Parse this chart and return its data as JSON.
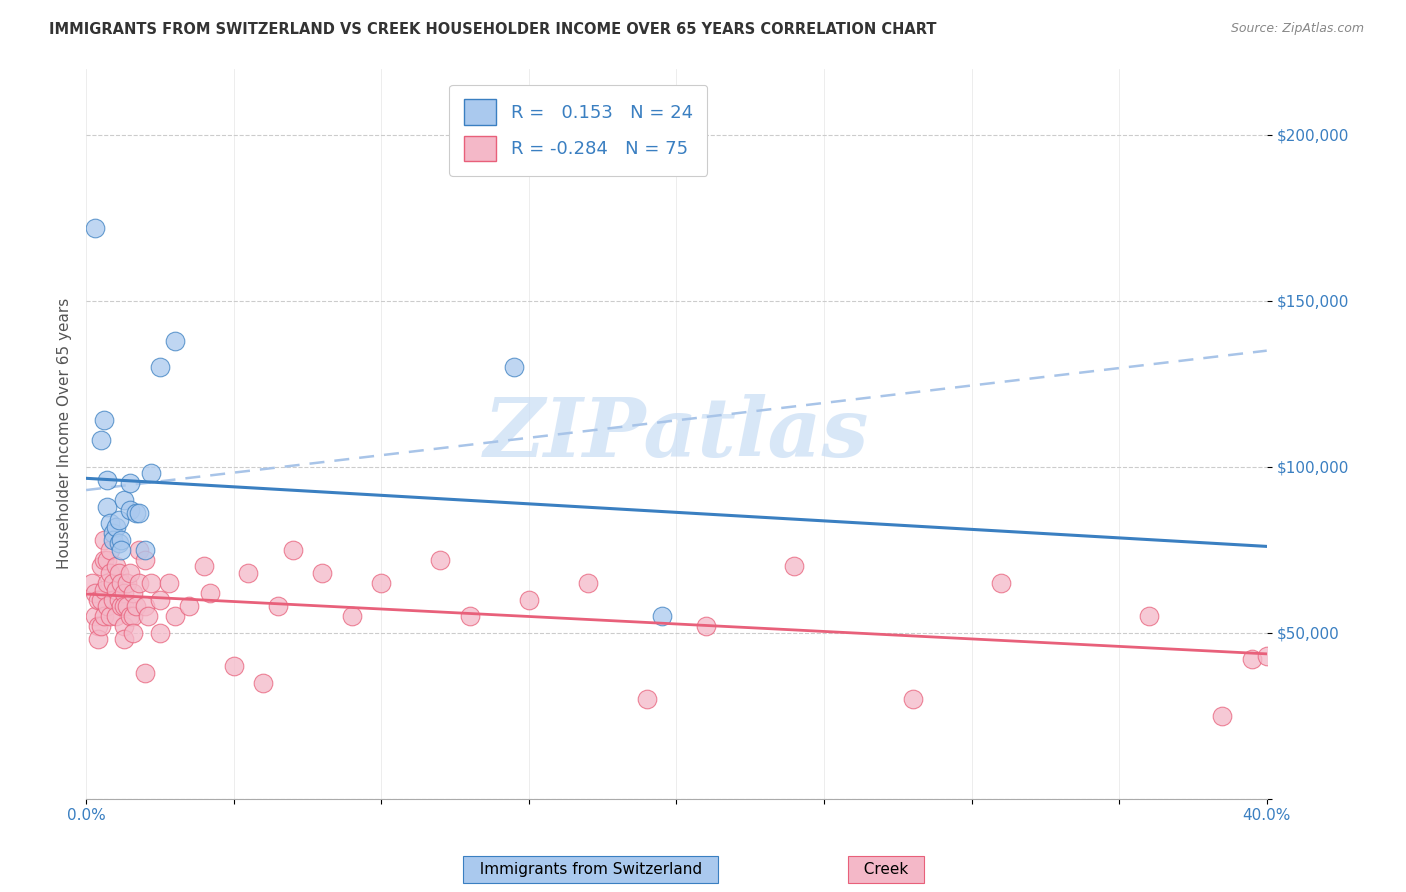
{
  "title": "IMMIGRANTS FROM SWITZERLAND VS CREEK HOUSEHOLDER INCOME OVER 65 YEARS CORRELATION CHART",
  "source": "Source: ZipAtlas.com",
  "ylabel": "Householder Income Over 65 years",
  "xlim": [
    0.0,
    0.4
  ],
  "ylim": [
    0,
    220000
  ],
  "yticks": [
    0,
    50000,
    100000,
    150000,
    200000
  ],
  "ytick_labels": [
    "",
    "$50,000",
    "$100,000",
    "$150,000",
    "$200,000"
  ],
  "color_swiss": "#aac9ee",
  "color_creek": "#f4b8c8",
  "trendline_swiss_color": "#3a7fc1",
  "trendline_creek_color": "#e8607a",
  "trendline_dashed_color": "#a8c4e8",
  "swiss_x": [
    0.003,
    0.005,
    0.006,
    0.007,
    0.007,
    0.008,
    0.009,
    0.009,
    0.01,
    0.011,
    0.011,
    0.012,
    0.012,
    0.013,
    0.015,
    0.015,
    0.017,
    0.018,
    0.02,
    0.022,
    0.025,
    0.03,
    0.145,
    0.195
  ],
  "swiss_y": [
    172000,
    108000,
    114000,
    96000,
    88000,
    83000,
    80000,
    78000,
    82000,
    77000,
    84000,
    78000,
    75000,
    90000,
    95000,
    87000,
    86000,
    86000,
    75000,
    98000,
    130000,
    138000,
    130000,
    55000
  ],
  "creek_x": [
    0.002,
    0.003,
    0.003,
    0.004,
    0.004,
    0.004,
    0.005,
    0.005,
    0.005,
    0.006,
    0.006,
    0.006,
    0.006,
    0.007,
    0.007,
    0.007,
    0.008,
    0.008,
    0.008,
    0.009,
    0.009,
    0.01,
    0.01,
    0.01,
    0.011,
    0.011,
    0.012,
    0.012,
    0.013,
    0.013,
    0.013,
    0.013,
    0.014,
    0.014,
    0.015,
    0.015,
    0.016,
    0.016,
    0.016,
    0.017,
    0.018,
    0.018,
    0.02,
    0.02,
    0.02,
    0.021,
    0.022,
    0.025,
    0.025,
    0.028,
    0.03,
    0.035,
    0.04,
    0.042,
    0.05,
    0.055,
    0.06,
    0.065,
    0.07,
    0.08,
    0.09,
    0.1,
    0.12,
    0.13,
    0.15,
    0.17,
    0.19,
    0.21,
    0.24,
    0.28,
    0.31,
    0.36,
    0.385,
    0.395,
    0.4
  ],
  "creek_y": [
    65000,
    62000,
    55000,
    60000,
    52000,
    48000,
    70000,
    60000,
    52000,
    78000,
    72000,
    63000,
    55000,
    72000,
    65000,
    58000,
    75000,
    68000,
    55000,
    65000,
    60000,
    70000,
    63000,
    55000,
    68000,
    60000,
    65000,
    58000,
    62000,
    58000,
    52000,
    48000,
    65000,
    58000,
    68000,
    55000,
    62000,
    55000,
    50000,
    58000,
    75000,
    65000,
    72000,
    58000,
    38000,
    55000,
    65000,
    60000,
    50000,
    65000,
    55000,
    58000,
    70000,
    62000,
    40000,
    68000,
    35000,
    58000,
    75000,
    68000,
    55000,
    65000,
    72000,
    55000,
    60000,
    65000,
    30000,
    52000,
    70000,
    30000,
    65000,
    55000,
    25000,
    42000,
    43000
  ],
  "dashed_line_x": [
    0.0,
    0.4
  ],
  "dashed_line_y": [
    93000,
    135000
  ],
  "watermark": "ZIPatlas",
  "watermark_color": "#c8ddf5",
  "legend_label1": "R =   0.153   N = 24",
  "legend_label2": "R = -0.284   N = 75",
  "bottom_legend1": "Immigrants from Switzerland",
  "bottom_legend2": "Creek"
}
